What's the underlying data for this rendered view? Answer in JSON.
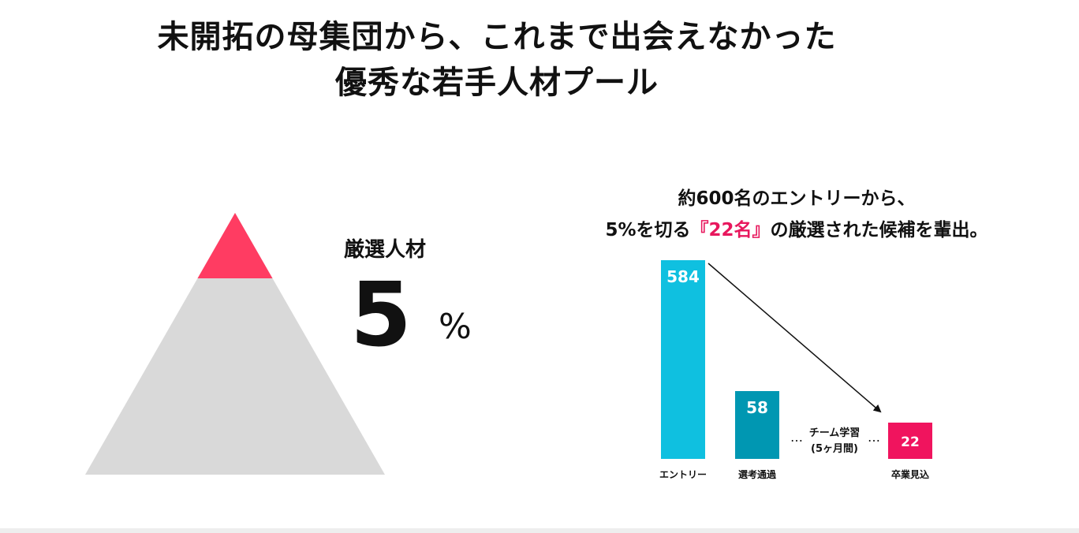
{
  "title": {
    "line1": "未開拓の母集団から、これまで出会えなかった",
    "line2": "優秀な若手人材プール"
  },
  "stat": {
    "label": "厳選人材",
    "value": "5",
    "unit": "%",
    "top_fraction": 0.25
  },
  "colors": {
    "pyramid_base": "#d9d9d9",
    "pyramid_top": "#ff3c62",
    "accent": "#e8175d"
  },
  "headline": {
    "line1": "約600名のエントリーから、",
    "line2_pre": "5%を切る",
    "line2_accent": "『22名』",
    "line2_post": "の厳選された候補を輩出。"
  },
  "chart_data": {
    "type": "bar",
    "categories": [
      "エントリー",
      "選考通過",
      "卒業見込"
    ],
    "values": [
      584,
      58,
      22
    ],
    "colors": [
      "#0fc0e0",
      "#0097b2",
      "#f0145e"
    ],
    "stage_note": [
      "チーム学習",
      "(5ヶ月間)"
    ],
    "ellipsis": "…",
    "arrow": {
      "from": "エントリー",
      "to": "卒業見込"
    }
  }
}
